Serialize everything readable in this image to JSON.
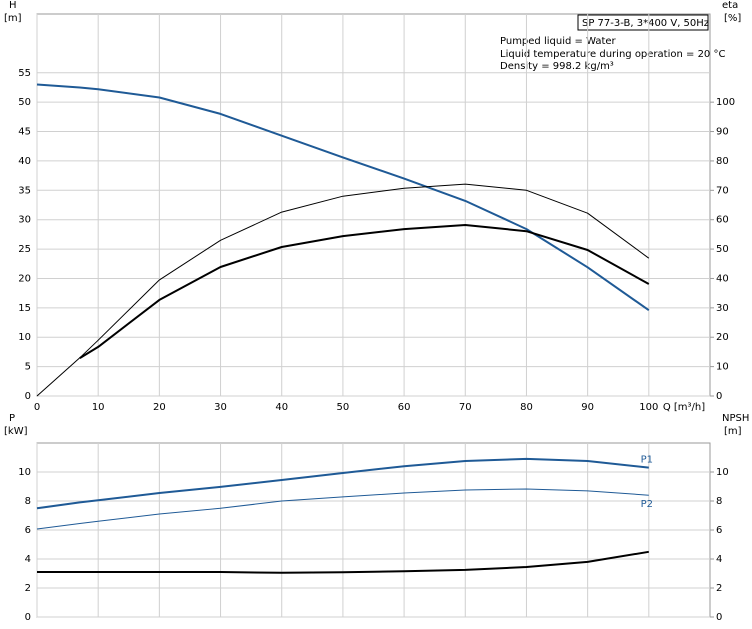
{
  "chart_data": [
    {
      "type": "line",
      "info_box": "SP 77-3-B, 3*400 V, 50Hz",
      "annotations": [
        "Pumped liquid = Water",
        "Liquid temperature during operation = 20 °C",
        "Density = 998.2 kg/m³"
      ],
      "ylabel": [
        "H",
        "[m]"
      ],
      "y2label": [
        "eta",
        "[%]"
      ],
      "xlabel": "Q [m³/h]",
      "x": [
        0,
        7,
        10,
        20,
        30,
        40,
        50,
        60,
        70,
        80,
        90,
        100
      ],
      "xlim": [
        0,
        110
      ],
      "xticks": [
        0,
        10,
        20,
        30,
        40,
        50,
        60,
        70,
        80,
        90,
        100
      ],
      "ylim": [
        0,
        65
      ],
      "yticks": [
        0,
        5,
        10,
        15,
        20,
        25,
        30,
        35,
        40,
        45,
        50,
        55
      ],
      "y2lim": [
        0,
        130
      ],
      "y2ticks": [
        0,
        10,
        20,
        30,
        40,
        50,
        60,
        70,
        80,
        90,
        100
      ],
      "grid": true,
      "series": [
        {
          "color": "#1f5a96",
          "linewidth": 2,
          "values": [
            53,
            52.5,
            52.2,
            50.8,
            48,
            44.3,
            40.6,
            37,
            33.2,
            28.4,
            21.9,
            14.6
          ]
        },
        {
          "color": "#000000",
          "linewidth": 1,
          "axis": "y2",
          "values": [
            0,
            13,
            19,
            39.5,
            53,
            62.6,
            68,
            70.7,
            72.1,
            70,
            62.2,
            46.9
          ]
        },
        {
          "color": "#000000",
          "linewidth": 2,
          "axis": "y2",
          "values": [
            null,
            12.9,
            16.7,
            32.7,
            43.9,
            50.7,
            54.4,
            56.8,
            58.2,
            56.1,
            49.7,
            38.1
          ]
        }
      ]
    },
    {
      "type": "line",
      "ylabel": [
        "P",
        "[kW]"
      ],
      "y2label": [
        "NPSH",
        "[m]"
      ],
      "x": [
        0,
        7,
        10,
        20,
        30,
        40,
        50,
        60,
        70,
        80,
        90,
        100
      ],
      "xlim": [
        0,
        110
      ],
      "xticks": [
        0,
        10,
        20,
        30,
        40,
        50,
        60,
        70,
        80,
        90,
        100
      ],
      "ylim": [
        0,
        12
      ],
      "yticks": [
        0,
        2,
        4,
        6,
        8,
        10
      ],
      "y2lim": [
        0,
        12
      ],
      "y2ticks": [
        0,
        2,
        4,
        6,
        8,
        10
      ],
      "grid": true,
      "series": [
        {
          "name": "P1",
          "color": "#1f5a96",
          "linewidth": 2,
          "values": [
            7.5,
            7.9,
            8.05,
            8.55,
            8.97,
            9.45,
            9.93,
            10.4,
            10.76,
            10.9,
            10.76,
            10.3
          ]
        },
        {
          "name": "P2",
          "color": "#1f5a96",
          "linewidth": 1,
          "values": [
            6.07,
            6.45,
            6.6,
            7.1,
            7.5,
            8.0,
            8.28,
            8.55,
            8.76,
            8.83,
            8.7,
            8.4
          ]
        },
        {
          "color": "#000000",
          "linewidth": 2,
          "axis": "y2",
          "values": [
            3.1,
            3.1,
            3.1,
            3.1,
            3.1,
            3.05,
            3.08,
            3.15,
            3.25,
            3.45,
            3.8,
            4.5
          ]
        }
      ]
    }
  ]
}
